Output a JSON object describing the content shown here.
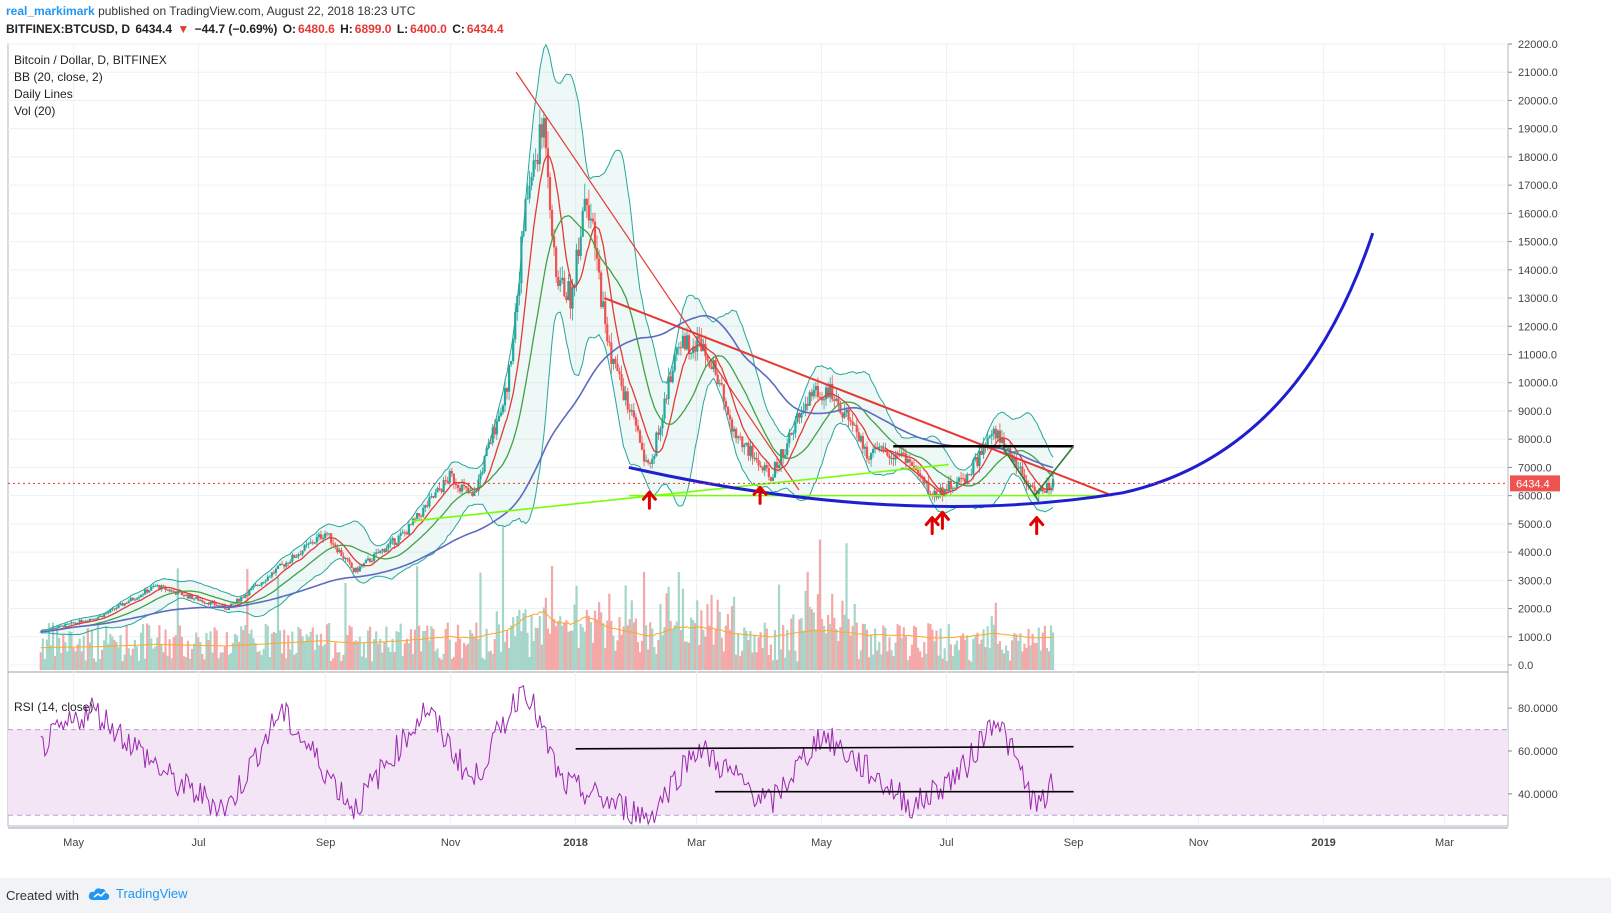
{
  "header": {
    "author": "real_markimark",
    "published": " published on TradingView.com, August 22, 2018 18:23 UTC",
    "symbol": "BITFINEX:BTCUSD, D",
    "last": "6434.4",
    "change": "−44.7 (−0.69%)",
    "o_label": "O:",
    "o_val": "6480.6",
    "h_label": "H:",
    "h_val": "6899.0",
    "l_label": "L:",
    "l_val": "6400.0",
    "c_label": "C:",
    "c_val": "6434.4"
  },
  "legend": {
    "title": "Bitcoin / Dollar, D, BITFINEX",
    "ind1": "BB (20, close, 2)",
    "ind2": "Daily Lines",
    "ind3": "Vol (20)",
    "rsi": "RSI (14, close)"
  },
  "footer": {
    "created": "Created with",
    "brand": "TradingView"
  },
  "colors": {
    "up": "#26a69a",
    "down": "#ef5350",
    "accent": "#2196f3",
    "rsi_line": "#9c27b0",
    "rsi_band": "#f3e5f5",
    "last_price_tag": "#ef5350"
  },
  "chart_data": [
    {
      "type": "candlestick",
      "title": "Bitcoin / Dollar, D, BITFINEX",
      "ylim": [
        0,
        22000
      ],
      "y_ticks": [
        "0.0",
        "1000.0",
        "2000.0",
        "3000.0",
        "4000.0",
        "5000.0",
        "6000.0",
        "7000.0",
        "8000.0",
        "9000.0",
        "10000.0",
        "11000.0",
        "12000.0",
        "13000.0",
        "14000.0",
        "15000.0",
        "16000.0",
        "17000.0",
        "18000.0",
        "19000.0",
        "20000.0",
        "21000.0",
        "22000.0"
      ],
      "x_ticks": [
        "May",
        "Jul",
        "Sep",
        "Nov",
        "2018",
        "Mar",
        "May",
        "Jul",
        "Sep",
        "Nov",
        "2019",
        "Mar"
      ],
      "last_price": 6434.4,
      "price_path": [
        [
          "2017-04-15",
          1180
        ],
        [
          "2017-05-15",
          1750
        ],
        [
          "2017-06-10",
          2800
        ],
        [
          "2017-07-15",
          2000
        ],
        [
          "2017-08-05",
          3200
        ],
        [
          "2017-09-01",
          4700
        ],
        [
          "2017-09-15",
          3300
        ],
        [
          "2017-10-10",
          4700
        ],
        [
          "2017-11-01",
          6700
        ],
        [
          "2017-11-12",
          5900
        ],
        [
          "2017-11-29",
          10000
        ],
        [
          "2017-12-08",
          16500
        ],
        [
          "2017-12-17",
          19300
        ],
        [
          "2017-12-22",
          13800
        ],
        [
          "2017-12-30",
          13000
        ],
        [
          "2018-01-06",
          17000
        ],
        [
          "2018-01-17",
          11300
        ],
        [
          "2018-02-06",
          6900
        ],
        [
          "2018-02-20",
          11400
        ],
        [
          "2018-03-05",
          11400
        ],
        [
          "2018-03-20",
          8200
        ],
        [
          "2018-04-06",
          6600
        ],
        [
          "2018-04-25",
          9500
        ],
        [
          "2018-05-06",
          9700
        ],
        [
          "2018-05-23",
          7500
        ],
        [
          "2018-06-10",
          7500
        ],
        [
          "2018-06-24",
          6000
        ],
        [
          "2018-07-10",
          6600
        ],
        [
          "2018-07-25",
          8300
        ],
        [
          "2018-08-14",
          6000
        ],
        [
          "2018-08-22",
          6434.4
        ]
      ],
      "annotations": {
        "arrow_dates": [
          "2018-02-06",
          "2018-04-01",
          "2018-06-24",
          "2018-06-29",
          "2018-08-14"
        ],
        "arc_projection_end": [
          "2019-01-25",
          15300
        ]
      }
    },
    {
      "type": "line",
      "title": "RSI (14, close)",
      "ylim": [
        25,
        95
      ],
      "y_ticks": [
        "40.0000",
        "60.0000",
        "80.0000"
      ],
      "bands": [
        30,
        70
      ],
      "path": [
        [
          "2017-04-15",
          62
        ],
        [
          "2017-05-10",
          80
        ],
        [
          "2017-06-20",
          45
        ],
        [
          "2017-07-15",
          33
        ],
        [
          "2017-08-10",
          79
        ],
        [
          "2017-09-15",
          33
        ],
        [
          "2017-10-20",
          80
        ],
        [
          "2017-11-12",
          45
        ],
        [
          "2017-12-07",
          92
        ],
        [
          "2017-12-25",
          45
        ],
        [
          "2018-02-06",
          29
        ],
        [
          "2018-03-01",
          62
        ],
        [
          "2018-04-06",
          35
        ],
        [
          "2018-05-01",
          68
        ],
        [
          "2018-06-15",
          34
        ],
        [
          "2018-07-10",
          52
        ],
        [
          "2018-07-25",
          77
        ],
        [
          "2018-08-14",
          33
        ],
        [
          "2018-08-22",
          44
        ]
      ],
      "support_levels": [
        61,
        41
      ]
    }
  ]
}
